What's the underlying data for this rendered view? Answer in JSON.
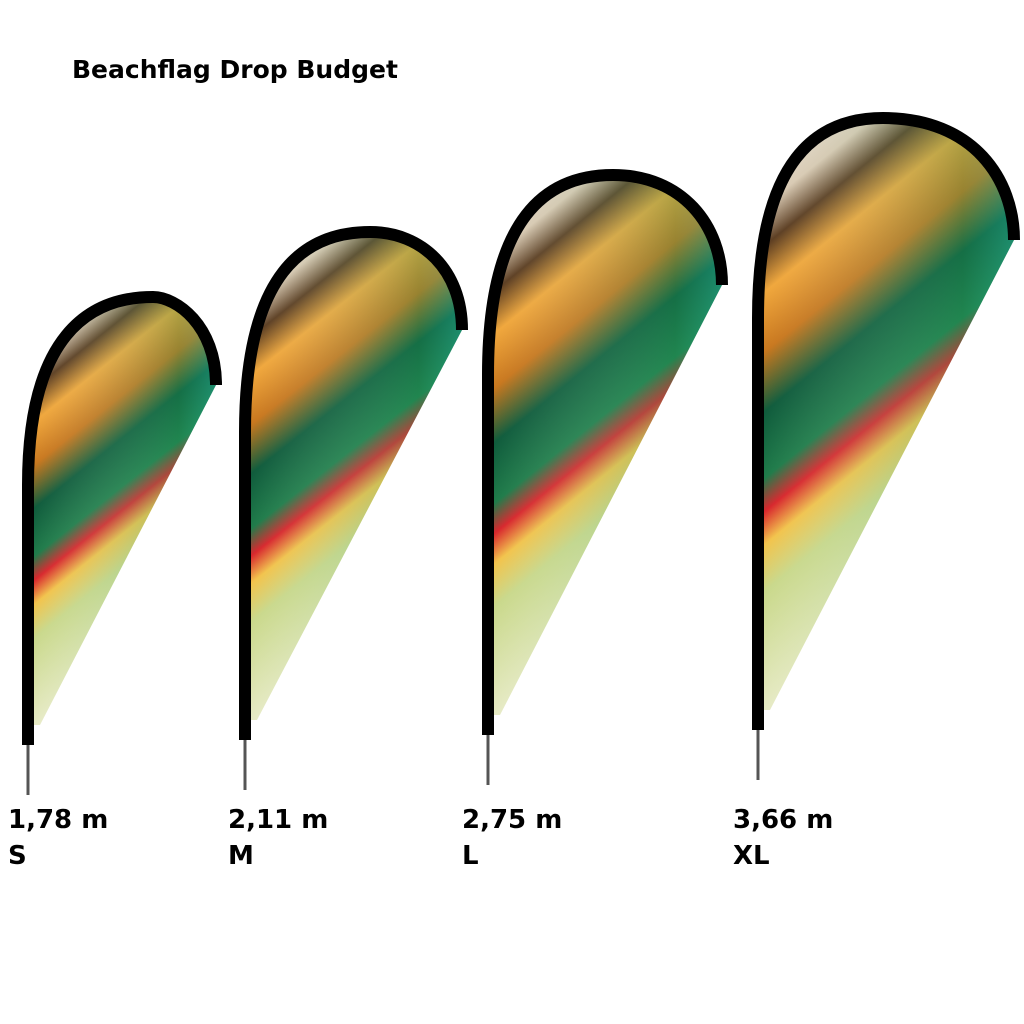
{
  "header": {
    "title": "Beachflag Drop Budget"
  },
  "items": [
    {
      "height": "1,78 m",
      "size": "S"
    },
    {
      "height": "2,11 m",
      "size": "M"
    },
    {
      "height": "2,75 m",
      "size": "L"
    },
    {
      "height": "3,66 m",
      "size": "XL"
    }
  ]
}
